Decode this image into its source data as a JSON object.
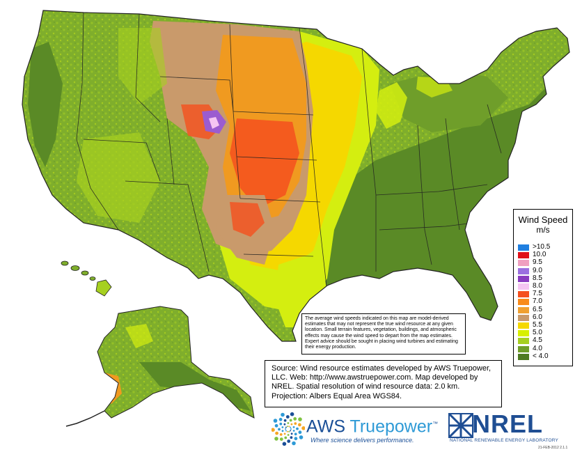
{
  "legend": {
    "title": "Wind Speed",
    "unit": "m/s",
    "items": [
      {
        "label": ">10.5",
        "color": "#1f7fe0"
      },
      {
        "label": "10.0",
        "color": "#e0111a"
      },
      {
        "label": "9.5",
        "color": "#f0a0c0"
      },
      {
        "label": "9.0",
        "color": "#9b6fe0"
      },
      {
        "label": "8.5",
        "color": "#8a3cc0"
      },
      {
        "label": "8.0",
        "color": "#f5c5f2"
      },
      {
        "label": "7.5",
        "color": "#f5501e"
      },
      {
        "label": "7.0",
        "color": "#f98b1a"
      },
      {
        "label": "6.5",
        "color": "#f0a030"
      },
      {
        "label": "6.0",
        "color": "#c99a6b"
      },
      {
        "label": "5.5",
        "color": "#f5d800"
      },
      {
        "label": "5.0",
        "color": "#d8f000"
      },
      {
        "label": "4.5",
        "color": "#a6d020"
      },
      {
        "label": "4.0",
        "color": "#6f9e2a"
      },
      {
        "label": "< 4.0",
        "color": "#4e7a22"
      }
    ]
  },
  "disclaimer": "The average wind speeds indicated on this map are model-derived estimates that may not represent the true wind resource at any given location. Small terrain features, vegetation, buildings, and atmospheric effects may cause the wind speed to depart from the map estimates. Expert advice should be sought in placing wind turbines and estimating their energy production.",
  "source": "Source: Wind resource estimates developed by AWS Truepower, LLC. Web: http://www.awstruepower.com. Map developed by NREL.  Spatial resolution of wind resource data: 2.0 km. Projection: Albers Equal Area WGS84.",
  "aws": {
    "name_a": "AWS ",
    "name_b": "Truepower",
    "tm": "™",
    "tagline": "Where science delivers performance."
  },
  "nrel": {
    "name": "NREL",
    "subtitle": "NATIONAL RENEWABLE ENERGY LABORATORY"
  },
  "stamp": "21-FEB-2012 2.1.1",
  "colors": {
    "low": "#5a8a26",
    "green": "#7fae2c",
    "lightgreen": "#a6d020",
    "yellowgreen": "#d4ee10",
    "yellow": "#f5d800",
    "tan": "#c99a6b",
    "orange": "#f09a20",
    "redorange": "#f5501e",
    "purple": "#9b5cd0",
    "border": "#222222"
  }
}
